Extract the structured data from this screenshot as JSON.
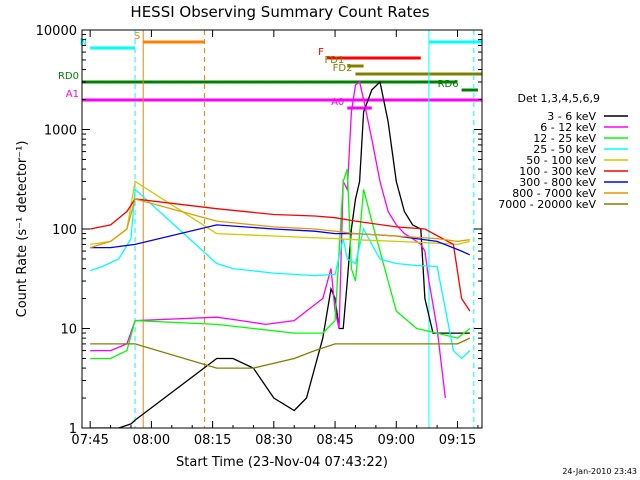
{
  "chart_data": {
    "type": "line",
    "title": "HESSI Observing Summary Count Rates",
    "xlabel": "Start Time (23-Nov-04 07:43:22)",
    "ylabel": "Count Rate (s⁻¹ detector⁻¹)",
    "footer": "24-Jan-2010 23:43",
    "xlim": [
      "07:43",
      "09:21"
    ],
    "ylim": [
      1,
      10000
    ],
    "yscale": "log",
    "x_ticks": [
      "07:45",
      "08:00",
      "08:15",
      "08:30",
      "08:45",
      "09:00",
      "09:15"
    ],
    "y_ticks": [
      "1",
      "10",
      "100",
      "1000",
      "10000"
    ],
    "legend_title": "Det 1,3,4,5,6,9",
    "legend_position": "right",
    "series": [
      {
        "name": "3 - 6 keV",
        "color": "#000000",
        "x": [
          "07:45",
          "07:49",
          "07:52",
          "07:55",
          "07:56",
          "08:16",
          "08:20",
          "08:25",
          "08:30",
          "08:35",
          "08:38",
          "08:42",
          "08:44",
          "08:45",
          "08:46",
          "08:47",
          "08:48",
          "08:49",
          "08:50",
          "08:51",
          "08:52",
          "08:54",
          "08:56",
          "08:58",
          "09:00",
          "09:02",
          "09:04",
          "09:06",
          "09:07",
          "09:09",
          "09:12",
          "09:14",
          "09:16",
          "09:18"
        ],
        "y": [
          1,
          1,
          1,
          1.1,
          1.2,
          5,
          5,
          4,
          2,
          1.5,
          2,
          8,
          25,
          20,
          10,
          10,
          30,
          100,
          200,
          300,
          1500,
          2500,
          3000,
          1200,
          300,
          150,
          110,
          100,
          20,
          9,
          9,
          9,
          9,
          9
        ]
      },
      {
        "name": "6 - 12 keV",
        "color": "#ff00ff",
        "x": [
          "07:45",
          "07:50",
          "07:54",
          "07:56",
          "08:16",
          "08:22",
          "08:28",
          "08:35",
          "08:38",
          "08:42",
          "08:44",
          "08:45",
          "08:46",
          "08:47",
          "08:48",
          "08:49",
          "08:50",
          "08:51",
          "08:52",
          "08:54",
          "08:56",
          "08:58",
          "09:00",
          "09:02",
          "09:04",
          "09:06",
          "09:07",
          "09:08",
          "09:10",
          "09:12"
        ],
        "y": [
          6,
          6,
          7,
          12,
          13,
          12,
          11,
          12,
          15,
          20,
          40,
          15,
          10,
          300,
          250,
          1500,
          2800,
          3000,
          2000,
          800,
          300,
          150,
          110,
          90,
          80,
          70,
          60,
          30,
          10,
          2
        ]
      },
      {
        "name": "12 - 25 keV",
        "color": "#00ff00",
        "x": [
          "07:45",
          "07:50",
          "07:54",
          "07:56",
          "08:16",
          "08:25",
          "08:35",
          "08:42",
          "08:45",
          "08:47",
          "08:48",
          "08:49",
          "08:50",
          "08:52",
          "08:54",
          "08:56",
          "08:58",
          "09:00",
          "09:05",
          "09:10",
          "09:15",
          "09:18"
        ],
        "y": [
          5,
          5,
          6,
          12,
          11,
          10,
          9,
          9,
          12,
          300,
          400,
          40,
          30,
          250,
          120,
          60,
          30,
          15,
          10,
          9,
          8,
          10
        ]
      },
      {
        "name": "25 - 50 keV",
        "color": "#00ffff",
        "x": [
          "07:45",
          "07:48",
          "07:52",
          "07:55",
          "07:56",
          "08:16",
          "08:20",
          "08:30",
          "08:40",
          "08:45",
          "08:47",
          "08:48",
          "08:50",
          "08:52",
          "08:54",
          "08:56",
          "09:00",
          "09:05",
          "09:10",
          "09:14",
          "09:16",
          "09:18"
        ],
        "y": [
          38,
          42,
          50,
          80,
          250,
          45,
          40,
          36,
          34,
          35,
          80,
          50,
          45,
          100,
          70,
          50,
          45,
          43,
          42,
          6,
          5,
          6
        ]
      },
      {
        "name": "50 - 100 keV",
        "color": "#cccc00",
        "x": [
          "07:45",
          "07:50",
          "07:54",
          "07:56",
          "08:16",
          "08:30",
          "08:45",
          "08:50",
          "09:00",
          "09:10",
          "09:15",
          "09:18"
        ],
        "y": [
          70,
          75,
          100,
          300,
          90,
          85,
          80,
          78,
          75,
          72,
          70,
          75
        ]
      },
      {
        "name": "100 - 300 keV",
        "color": "#ff0000",
        "x": [
          "07:45",
          "07:50",
          "07:54",
          "07:56",
          "08:16",
          "08:30",
          "08:40",
          "08:45",
          "08:50",
          "09:00",
          "09:07",
          "09:14",
          "09:16",
          "09:18"
        ],
        "y": [
          100,
          110,
          150,
          200,
          160,
          140,
          135,
          130,
          120,
          105,
          100,
          70,
          20,
          15
        ]
      },
      {
        "name": "300 - 800 keV",
        "color": "#0000ff",
        "x": [
          "07:45",
          "07:50",
          "07:56",
          "08:16",
          "08:30",
          "08:40",
          "08:45",
          "08:50",
          "09:00",
          "09:10",
          "09:16",
          "09:18"
        ],
        "y": [
          65,
          65,
          70,
          110,
          100,
          95,
          90,
          90,
          85,
          75,
          60,
          55
        ]
      },
      {
        "name": "800 - 7000 keV",
        "color": "#e69900",
        "x": [
          "07:45",
          "07:50",
          "07:54",
          "07:56",
          "08:16",
          "08:30",
          "08:40",
          "08:45",
          "08:50",
          "09:00",
          "09:10",
          "09:15",
          "09:18"
        ],
        "y": [
          65,
          75,
          100,
          200,
          120,
          105,
          100,
          95,
          90,
          85,
          80,
          75,
          78
        ]
      },
      {
        "name": "7000 - 20000 keV",
        "color": "#808000",
        "x": [
          "07:45",
          "07:50",
          "07:56",
          "08:16",
          "08:25",
          "08:35",
          "08:40",
          "08:45",
          "08:50",
          "09:00",
          "09:10",
          "09:15",
          "09:18"
        ],
        "y": [
          7,
          7,
          7,
          4,
          4,
          5,
          6,
          7,
          7,
          7,
          7,
          7,
          8
        ]
      }
    ],
    "markers": [
      {
        "label": "S",
        "color": "#ff8000",
        "x_start": "07:58",
        "x_end": "08:13",
        "level": "top"
      },
      {
        "label": "N",
        "color": "#00ffff",
        "x_start": "07:45",
        "x_end": "07:56",
        "level": "top"
      },
      {
        "label": "",
        "color": "#00ffff",
        "x_start": "09:08",
        "x_end": "09:21",
        "level": "top"
      },
      {
        "label": "F",
        "color": "#ff0000",
        "x_start": "08:43",
        "x_end": "09:06"
      },
      {
        "label": "FD1",
        "color": "#808000",
        "x_start": "08:48",
        "x_end": "08:52"
      },
      {
        "label": "FD2",
        "color": "#808000",
        "x_start": "08:50",
        "x_end": "09:21"
      },
      {
        "label": "RD0",
        "color": "#008000",
        "x_start": "07:43",
        "x_end": "09:15"
      },
      {
        "label": "RD6",
        "color": "#008000",
        "x_start": "09:16",
        "x_end": "09:20"
      },
      {
        "label": "A1",
        "color": "#ff00ff",
        "x_start": "07:43",
        "x_end": "09:21"
      },
      {
        "label": "A0",
        "color": "#ff00ff",
        "x_start": "08:48",
        "x_end": "08:54"
      }
    ],
    "vertical_lines": [
      {
        "x": "07:56",
        "color": "#00ffff",
        "style": "dashed"
      },
      {
        "x": "07:58",
        "color": "#ff8000",
        "style": "solid"
      },
      {
        "x": "08:13",
        "color": "#ff8000",
        "style": "dashed"
      },
      {
        "x": "09:08",
        "color": "#00ffff",
        "style": "solid"
      },
      {
        "x": "09:19",
        "color": "#00ffff",
        "style": "dashed"
      }
    ]
  }
}
